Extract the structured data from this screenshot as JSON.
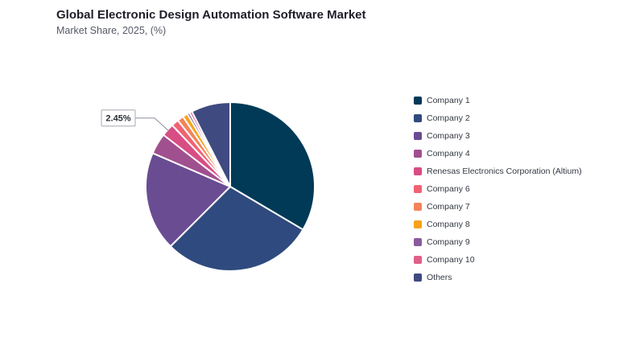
{
  "title": "Global Electronic Design Automation Software Market",
  "subtitle": "Market Share, 2025, (%)",
  "chart_data": {
    "type": "pie",
    "title": "Global Electronic Design Automation Software Market",
    "subtitle": "Market Share, 2025, (%)",
    "start_angle_deg": 0,
    "direction": "clockwise",
    "legend_position": "right",
    "slices": [
      {
        "label": "Company 1",
        "value": 33.5,
        "color": "#003a57"
      },
      {
        "label": "Company 2",
        "value": 29.0,
        "color": "#2f4a7e"
      },
      {
        "label": "Company 3",
        "value": 19.0,
        "color": "#6a4c93"
      },
      {
        "label": "Company 4",
        "value": 4.0,
        "color": "#a0508f"
      },
      {
        "label": "Renesas Electronics Corporation (Altium)",
        "value": 2.45,
        "color": "#d84d84"
      },
      {
        "label": "Company 6",
        "value": 1.4,
        "color": "#f06373"
      },
      {
        "label": "Company 7",
        "value": 1.2,
        "color": "#f2845a"
      },
      {
        "label": "Company 8",
        "value": 0.95,
        "color": "#f6a21d"
      },
      {
        "label": "Company 9",
        "value": 0.5,
        "color": "#8b5a9c"
      },
      {
        "label": "Company 10",
        "value": 0.5,
        "color": "#e0608a"
      },
      {
        "label": "Others",
        "value": 7.5,
        "color": "#3f4a80"
      }
    ],
    "annotations": [
      {
        "slice": "Renesas Electronics Corporation (Altium)",
        "text": "2.45%"
      }
    ]
  }
}
